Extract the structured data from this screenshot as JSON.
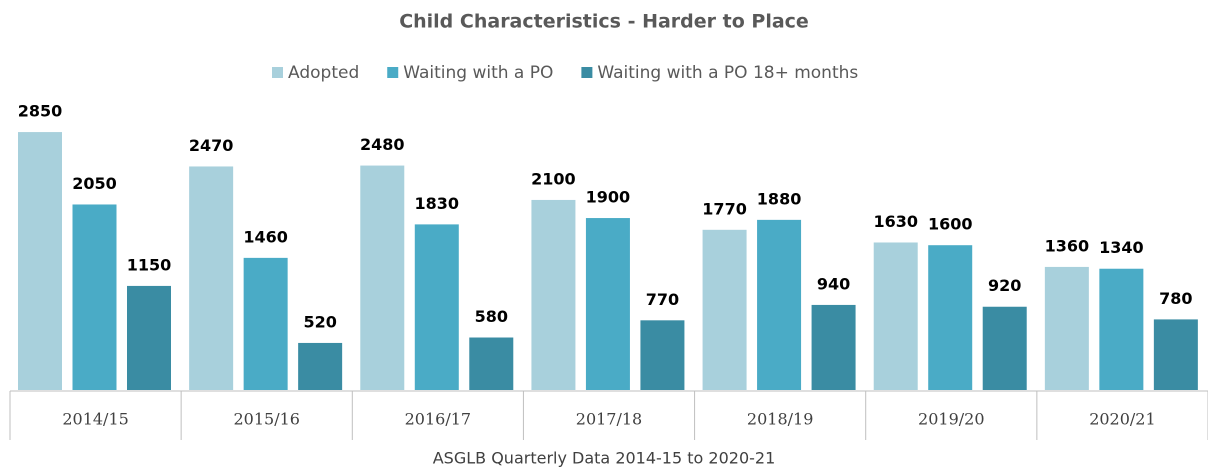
{
  "chart_data": {
    "type": "bar",
    "title": "Child Characteristics - Harder to Place",
    "x_label": "ASGLB Quarterly Data 2014-15 to 2020-21",
    "categories": [
      "2014/15",
      "2015/16",
      "2016/17",
      "2017/18",
      "2018/19",
      "2019/20",
      "2020/21"
    ],
    "series": [
      {
        "name": "Adopted",
        "color": "#a8d0dc",
        "values": [
          2850,
          2470,
          2480,
          2100,
          1770,
          1630,
          1360
        ]
      },
      {
        "name": "Waiting with a PO",
        "color": "#4aabc6",
        "values": [
          2050,
          1460,
          1830,
          1900,
          1880,
          1600,
          1340
        ]
      },
      {
        "name": "Waiting with a PO 18+ months",
        "color": "#3a8ca3",
        "values": [
          1150,
          520,
          580,
          770,
          940,
          920,
          780
        ]
      }
    ],
    "legend": "top"
  }
}
